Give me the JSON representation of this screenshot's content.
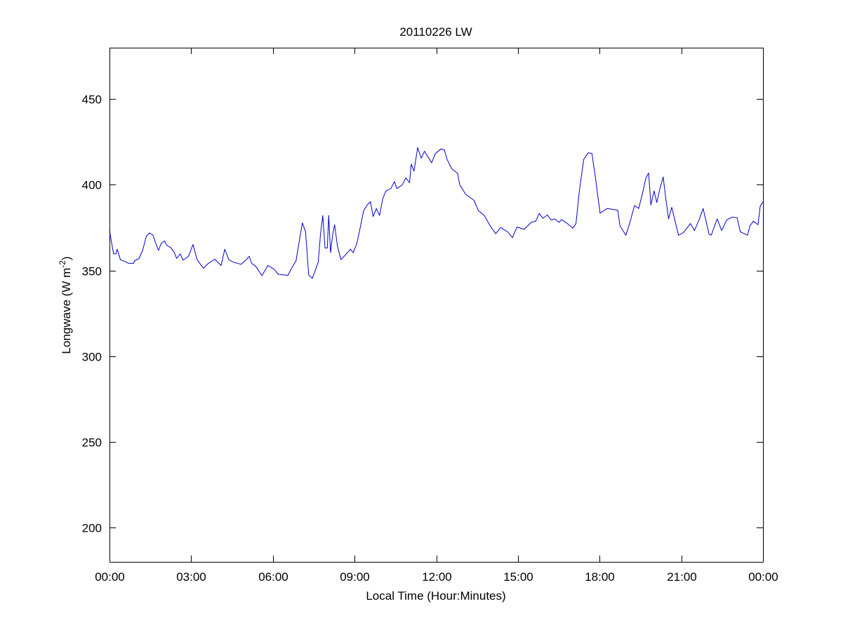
{
  "chart_data": {
    "type": "line",
    "title": "20110226 LW",
    "xlabel": "Local Time (Hour:Minutes)",
    "ylabel_main": "Longwave (W m",
    "ylabel_sup": "-2",
    "ylabel_close": ")",
    "xlim": [
      "00:00",
      "24:00"
    ],
    "ylim": [
      180,
      480
    ],
    "xticks": [
      "00:00",
      "03:00",
      "06:00",
      "09:00",
      "12:00",
      "15:00",
      "18:00",
      "21:00",
      "00:00"
    ],
    "yticks": [
      200,
      250,
      300,
      350,
      400,
      450
    ],
    "grid": false,
    "line_color": "#0000cc",
    "series": [
      {
        "x": [
          "00:00",
          "00:01",
          "00:09",
          "00:14",
          "00:17",
          "00:24",
          "00:34",
          "00:42",
          "00:53",
          "00:55",
          "01:05",
          "01:13",
          "01:21",
          "01:28",
          "01:36",
          "01:42",
          "01:48",
          "01:54",
          "02:01",
          "02:07",
          "02:15",
          "02:23",
          "02:28",
          "02:36",
          "02:42",
          "02:54",
          "03:04",
          "03:13",
          "03:27",
          "03:38",
          "03:52",
          "04:06",
          "04:14",
          "04:23",
          "04:32",
          "04:50",
          "05:00",
          "05:08",
          "05:13",
          "05:23",
          "05:36",
          "05:49",
          "06:02",
          "06:12",
          "06:33",
          "06:43",
          "06:51",
          "06:59",
          "07:05",
          "07:12",
          "07:19",
          "07:27",
          "07:40",
          "07:45",
          "07:50",
          "07:55",
          "08:00",
          "08:03",
          "08:07",
          "08:12",
          "08:16",
          "08:22",
          "08:30",
          "08:37",
          "08:51",
          "08:57",
          "09:05",
          "09:10",
          "09:20",
          "09:28",
          "09:35",
          "09:41",
          "09:48",
          "09:55",
          "10:02",
          "10:09",
          "10:20",
          "10:28",
          "10:33",
          "10:45",
          "10:53",
          "11:01",
          "11:05",
          "11:11",
          "11:19",
          "11:27",
          "11:34",
          "11:50",
          "11:58",
          "12:11",
          "12:18",
          "12:24",
          "12:34",
          "12:47",
          "12:52",
          "13:05",
          "13:23",
          "13:33",
          "13:46",
          "13:59",
          "14:11",
          "14:22",
          "14:37",
          "14:48",
          "14:58",
          "15:14",
          "15:29",
          "15:39",
          "15:47",
          "15:55",
          "16:05",
          "16:13",
          "16:21",
          "16:31",
          "16:36",
          "16:49",
          "17:01",
          "17:08",
          "17:15",
          "17:25",
          "17:35",
          "17:43",
          "17:51",
          "18:01",
          "18:09",
          "18:17",
          "18:40",
          "18:45",
          "18:58",
          "19:06",
          "19:17",
          "19:26",
          "19:34",
          "19:42",
          "19:48",
          "19:53",
          "20:00",
          "20:06",
          "20:13",
          "20:20",
          "20:26",
          "20:32",
          "20:39",
          "20:54",
          "21:04",
          "21:12",
          "21:20",
          "21:29",
          "21:40",
          "21:48",
          "22:01",
          "22:06",
          "22:19",
          "22:29",
          "22:40",
          "22:52",
          "23:03",
          "23:10",
          "23:26",
          "23:31",
          "23:39",
          "23:49",
          "23:54",
          "24:00"
        ],
        "y": [
          373,
          371.9,
          359.7,
          359.7,
          362.4,
          356.3,
          355.2,
          354.2,
          354.2,
          355.6,
          357,
          361.7,
          369.9,
          371.9,
          370.6,
          365.8,
          361.7,
          365.8,
          367.2,
          364.5,
          363.4,
          360.4,
          357,
          359.7,
          356,
          358.3,
          365.2,
          356.3,
          351.3,
          354.2,
          356.6,
          352.9,
          362.4,
          356.3,
          354.9,
          353.6,
          356,
          358.3,
          354.2,
          352.2,
          347,
          352.9,
          350.9,
          347.8,
          347.2,
          352.2,
          355.6,
          368.5,
          377.8,
          372.6,
          347.4,
          345.4,
          354.9,
          371.3,
          382.1,
          363.1,
          363.1,
          382.1,
          360.4,
          371.3,
          376.7,
          364.5,
          356.3,
          358.3,
          362.4,
          360.4,
          365.8,
          371.9,
          384.9,
          388.3,
          390.2,
          381.5,
          386.2,
          382.1,
          391.7,
          396.4,
          397.8,
          401.9,
          397.8,
          399.9,
          404,
          401.2,
          412.1,
          408,
          421.7,
          415.5,
          419.6,
          412.8,
          418.3,
          421,
          420.3,
          414.8,
          409.4,
          406.7,
          399.9,
          394.4,
          391,
          384.9,
          382.1,
          376,
          371.5,
          375.1,
          372.6,
          369.2,
          375.4,
          374,
          378.1,
          378.8,
          383.3,
          380.5,
          382.4,
          379.5,
          380.1,
          378.1,
          379.7,
          377.4,
          374.7,
          377.4,
          395.8,
          414.8,
          418.7,
          418.3,
          404,
          383.5,
          384.9,
          386.2,
          385.2,
          376,
          370.6,
          377.4,
          387.9,
          386.2,
          394.4,
          404,
          406.9,
          388.3,
          396.4,
          389.7,
          397.8,
          404.6,
          391.7,
          380.1,
          386.9,
          370.6,
          371.9,
          374.7,
          377.4,
          373.3,
          380.1,
          386.2,
          371.3,
          370.6,
          380.1,
          373.3,
          379.5,
          381.1,
          380.8,
          372.6,
          370.6,
          376,
          378.8,
          376.7,
          387.6,
          390.1
        ]
      }
    ]
  }
}
